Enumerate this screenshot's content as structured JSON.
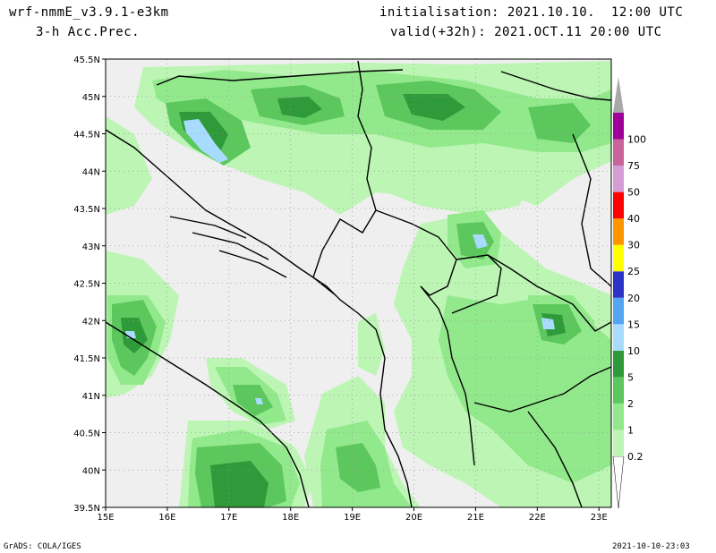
{
  "header": {
    "model": "wrf-nmmE_v3.9.1-e3km",
    "field": "3-h Acc.Prec.",
    "init": "initialisation: 2021.10.10.  12:00 UTC",
    "valid": "valid(+32h): 2021.OCT.11 20:00 UTC"
  },
  "map": {
    "lon_range": [
      15,
      23.2
    ],
    "lat_range": [
      39.5,
      45.5
    ],
    "lon_ticks": [
      "15E",
      "16E",
      "17E",
      "18E",
      "19E",
      "20E",
      "21E",
      "22E",
      "23E"
    ],
    "lat_ticks": [
      "39.5N",
      "40N",
      "40.5N",
      "41N",
      "41.5N",
      "42N",
      "42.5N",
      "43N",
      "43.5N",
      "44N",
      "44.5N",
      "45N",
      "45.5N"
    ],
    "background_color": "#efefef",
    "grid": true
  },
  "legend": {
    "levels": [
      {
        "label": "0.2",
        "color": "#bcf5b4"
      },
      {
        "label": "1",
        "color": "#92e98c"
      },
      {
        "label": "2",
        "color": "#5cc75c"
      },
      {
        "label": "5",
        "color": "#2f9a3a"
      },
      {
        "label": "10",
        "color": "#a8dcff"
      },
      {
        "label": "15",
        "color": "#52a6f4"
      },
      {
        "label": "20",
        "color": "#2e33c8"
      },
      {
        "label": "25",
        "color": "#ffff00"
      },
      {
        "label": "30",
        "color": "#ff9600"
      },
      {
        "label": "40",
        "color": "#ff0000"
      },
      {
        "label": "50",
        "color": "#d59cd5"
      },
      {
        "label": "75",
        "color": "#c8649b"
      },
      {
        "label": "100",
        "color": "#a0009a"
      }
    ],
    "top_color": "#a8a8a8"
  },
  "footer": {
    "left": "GrADS: COLA/IGES",
    "right": "2021-10-10-23:03"
  }
}
